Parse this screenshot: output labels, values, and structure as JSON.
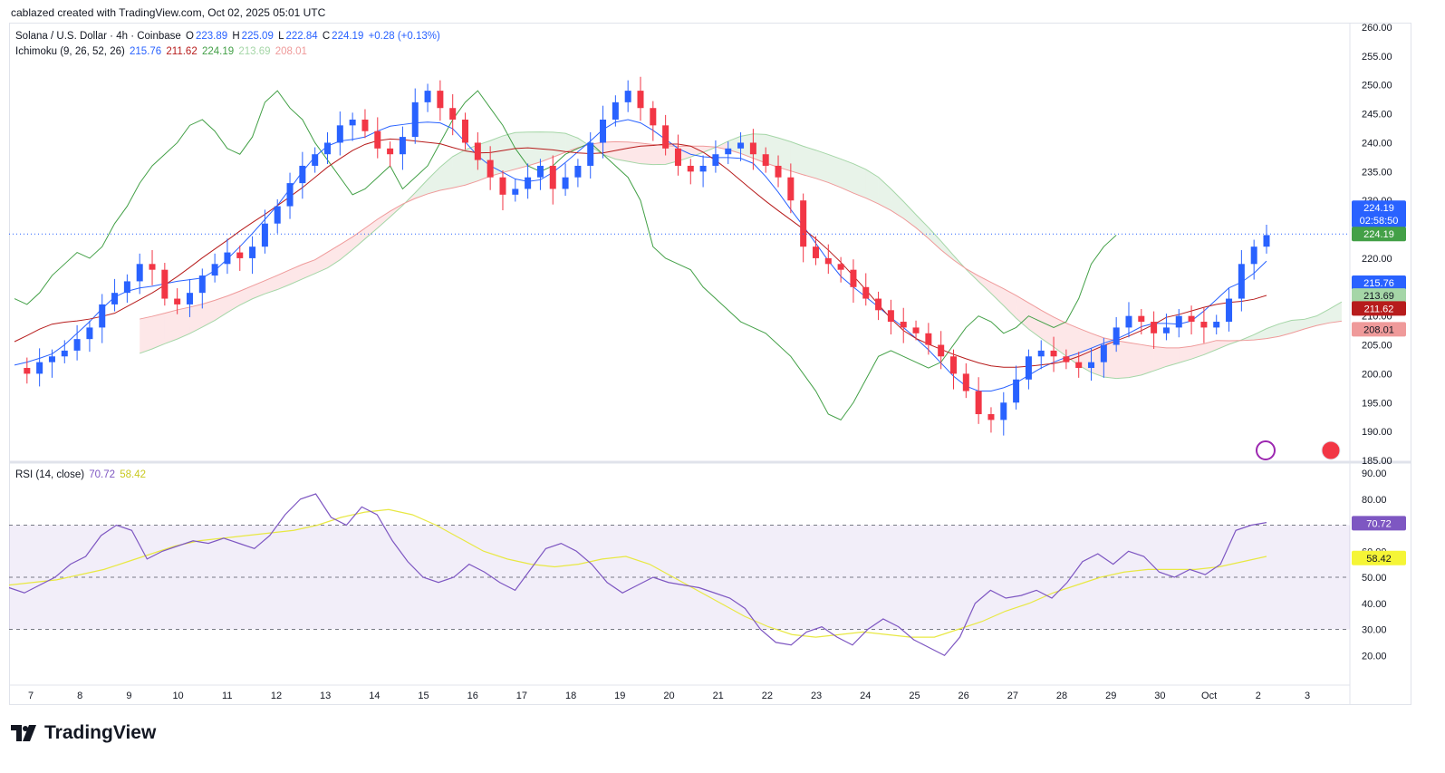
{
  "header": {
    "credit": "cablazed created with TradingView.com, Oct 02, 2025 05:01 UTC"
  },
  "legend_main": {
    "symbol": "Solana / U.S. Dollar · 4h · Coinbase",
    "o_label": "O",
    "o_value": "223.89",
    "h_label": "H",
    "h_value": "225.09",
    "l_label": "L",
    "l_value": "222.84",
    "c_label": "C",
    "c_value": "224.19",
    "change": "+0.28 (+0.13%)",
    "ichimoku_label": "Ichimoku (9, 26, 52, 26)",
    "ich_conversion": "215.76",
    "ich_base": "211.62",
    "ich_lagging": "224.19",
    "ich_span_a": "213.69",
    "ich_span_b": "208.01"
  },
  "legend_rsi": {
    "label": "RSI (14, close)",
    "rsi": "70.72",
    "rsi_ma": "58.42"
  },
  "footer": {
    "logo_text": "TradingView"
  },
  "price_badges": {
    "last_price": "224.19",
    "countdown": "02:58:50",
    "lagging": "224.19",
    "conversion": "215.76",
    "span_a": "213.69",
    "base": "211.62",
    "span_b": "208.01",
    "rsi": "70.72",
    "rsi_ma": "58.42"
  },
  "colors": {
    "up": "#2962ff",
    "down": "#f23645",
    "conversion": "#2962ff",
    "base": "#b71c1c",
    "lagging": "#43a047",
    "span_a": "#a5d6a7",
    "span_b": "#ef9a9a",
    "rsi": "#7e57c2",
    "rsi_ma": "#e8e843"
  },
  "chart_data": [
    {
      "type": "candlestick",
      "title": "Solana / U.S. Dollar · 4h · Coinbase",
      "x_labels": [
        "7",
        "8",
        "9",
        "10",
        "11",
        "12",
        "13",
        "14",
        "15",
        "16",
        "17",
        "18",
        "19",
        "20",
        "21",
        "22",
        "23",
        "24",
        "25",
        "26",
        "27",
        "28",
        "29",
        "30",
        "Oct",
        "2",
        "3"
      ],
      "y_ticks": [
        "260.00",
        "255.00",
        "250.00",
        "245.00",
        "240.00",
        "235.00",
        "230.00",
        "225.00",
        "220.00",
        "215.00",
        "210.00",
        "205.00",
        "200.00",
        "195.00",
        "190.00",
        "185.00"
      ],
      "ylim": [
        185,
        260
      ],
      "close_series": [
        201,
        200,
        202,
        203,
        204,
        206,
        208,
        212,
        214,
        216,
        219,
        218,
        213,
        212,
        214,
        217,
        219,
        221,
        220,
        222,
        226,
        229,
        233,
        236,
        238,
        240,
        243,
        244,
        242,
        239,
        238,
        241,
        247,
        249,
        246,
        244,
        240,
        237,
        234,
        231,
        232,
        234,
        236,
        232,
        234,
        236,
        240,
        244,
        247,
        249,
        246,
        243,
        239,
        236,
        235,
        236,
        238,
        239,
        240,
        238,
        236,
        234,
        230,
        222,
        220,
        219,
        218,
        215,
        213,
        211,
        209,
        208,
        207,
        205,
        203,
        200,
        197,
        193,
        192,
        195,
        199,
        203,
        204,
        203,
        202,
        201,
        202,
        205,
        208,
        210,
        209,
        207,
        208,
        210,
        209,
        208,
        209,
        213,
        219,
        222,
        224
      ],
      "lines": [
        {
          "name": "Conversion Line",
          "value": 215.76
        },
        {
          "name": "Base Line",
          "value": 211.62
        },
        {
          "name": "Lagging Span",
          "value": 224.19
        },
        {
          "name": "Leading Span A",
          "value": 213.69
        },
        {
          "name": "Leading Span B",
          "value": 208.01
        }
      ],
      "last": {
        "open": 223.89,
        "high": 225.09,
        "low": 222.84,
        "close": 224.19
      }
    },
    {
      "type": "line",
      "title": "RSI (14, close)",
      "y_ticks": [
        "90.00",
        "80.00",
        "70.00",
        "60.00",
        "50.00",
        "40.00",
        "30.00",
        "20.00"
      ],
      "ylim": [
        10,
        90
      ],
      "bands": [
        30,
        50,
        70
      ],
      "rsi_series": [
        46,
        44,
        47,
        50,
        55,
        58,
        66,
        70,
        68,
        57,
        60,
        62,
        64,
        63,
        65,
        63,
        61,
        66,
        74,
        80,
        82,
        73,
        70,
        77,
        74,
        64,
        56,
        50,
        48,
        50,
        55,
        52,
        48,
        45,
        53,
        61,
        63,
        60,
        55,
        48,
        44,
        47,
        50,
        48,
        47,
        46,
        44,
        42,
        38,
        30,
        25,
        24,
        29,
        31,
        27,
        24,
        30,
        34,
        31,
        26,
        23,
        20,
        27,
        40,
        45,
        42,
        43,
        45,
        42,
        48,
        56,
        59,
        55,
        60,
        58,
        52,
        50,
        53,
        51,
        55,
        68,
        70,
        71
      ],
      "ma_series": [
        47,
        48,
        49,
        51,
        53,
        56,
        59,
        62,
        64,
        65,
        66,
        67,
        68,
        70,
        73,
        75,
        76,
        74,
        70,
        65,
        60,
        57,
        55,
        54,
        55,
        57,
        58,
        55,
        50,
        45,
        40,
        35,
        31,
        28,
        27,
        28,
        29,
        28,
        27,
        27,
        30,
        33,
        37,
        40,
        44,
        47,
        50,
        52,
        53,
        53,
        53,
        54,
        56,
        58
      ]
    }
  ]
}
